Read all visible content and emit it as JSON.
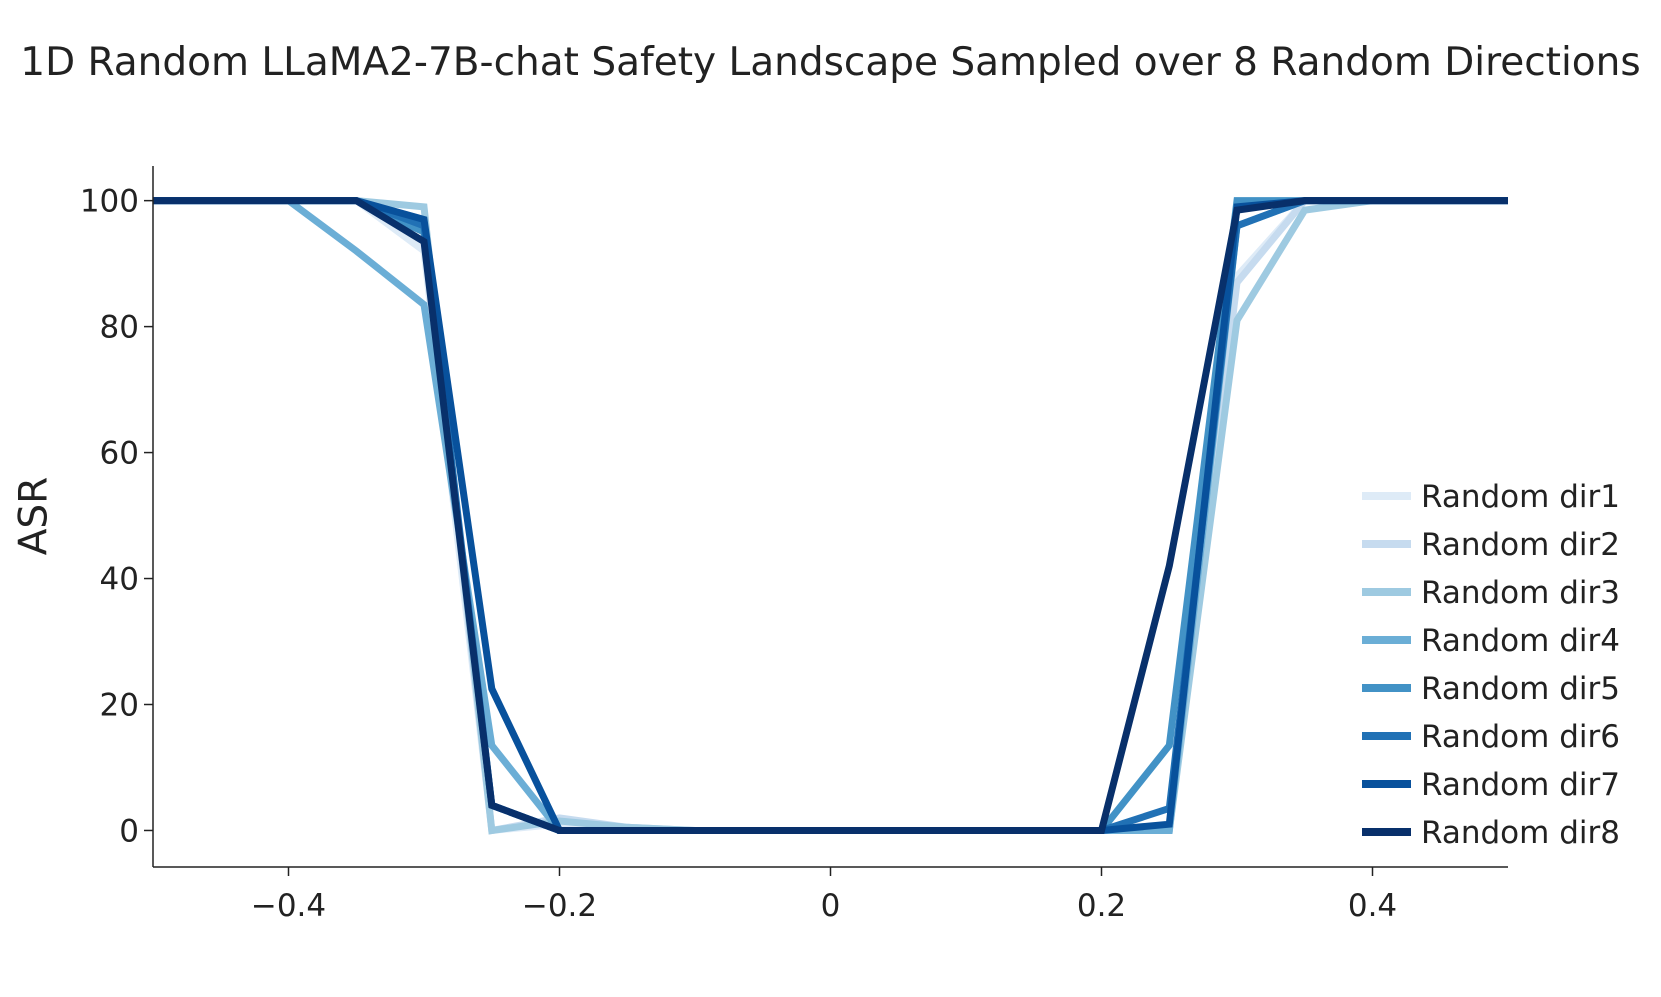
{
  "chart_data": {
    "type": "line",
    "title": "1D Random LLaMA2-7B-chat Safety Landscape Sampled over 8 Random Directions",
    "xlabel": "",
    "ylabel": "ASR",
    "xlim": [
      -0.5,
      0.5
    ],
    "ylim": [
      -5.8,
      105.5
    ],
    "xticks": [
      -0.4,
      -0.2,
      0,
      0.2,
      0.4
    ],
    "xtick_labels": [
      "−0.4",
      "−0.2",
      "0",
      "0.2",
      "0.4"
    ],
    "yticks": [
      0,
      20,
      40,
      60,
      80,
      100
    ],
    "ytick_labels": [
      "0",
      "20",
      "40",
      "60",
      "80",
      "100"
    ],
    "grid": false,
    "legend_position": "lower-right",
    "x": [
      -0.5,
      -0.45,
      -0.4,
      -0.35,
      -0.3,
      -0.25,
      -0.2,
      -0.15,
      -0.1,
      -0.05,
      0,
      0.05,
      0.1,
      0.15,
      0.2,
      0.25,
      0.3,
      0.35,
      0.4,
      0.45,
      0.5
    ],
    "series": [
      {
        "name": "Random dir1",
        "color": "#deebf7",
        "values": [
          100,
          100,
          100,
          100,
          92,
          0,
          1,
          0,
          0,
          0,
          0,
          0,
          0,
          0,
          0,
          0,
          88,
          100,
          100,
          100,
          100
        ]
      },
      {
        "name": "Random dir2",
        "color": "#c6dbef",
        "values": [
          100,
          100,
          100,
          100,
          97,
          0,
          2,
          0.5,
          0,
          0,
          0,
          0,
          0,
          0,
          0,
          0,
          87,
          100,
          100,
          100,
          100
        ]
      },
      {
        "name": "Random dir3",
        "color": "#9ecae1",
        "values": [
          100,
          100,
          100,
          100,
          99,
          0,
          1.5,
          0.5,
          0,
          0,
          0,
          0,
          0,
          0,
          0,
          0,
          81,
          98.5,
          100,
          100,
          100
        ]
      },
      {
        "name": "Random dir4",
        "color": "#6baed6",
        "values": [
          100,
          100,
          100,
          92,
          83.5,
          13.5,
          0,
          0,
          0,
          0,
          0,
          0,
          0,
          0,
          0,
          0,
          96,
          100,
          100,
          100,
          100
        ]
      },
      {
        "name": "Random dir5",
        "color": "#4292c6",
        "values": [
          100,
          100,
          100,
          100,
          95,
          4,
          0,
          0,
          0,
          0,
          0,
          0,
          0,
          0,
          0,
          13.5,
          100,
          100,
          100,
          100,
          100
        ]
      },
      {
        "name": "Random dir6",
        "color": "#2171b5",
        "values": [
          100,
          100,
          100,
          100,
          96,
          4,
          0,
          0,
          0,
          0,
          0,
          0,
          0,
          0,
          0,
          3.5,
          96,
          100,
          100,
          100,
          100
        ]
      },
      {
        "name": "Random dir7",
        "color": "#08519c",
        "values": [
          100,
          100,
          100,
          100,
          97,
          22.5,
          0,
          0,
          0,
          0,
          0,
          0,
          0,
          0,
          0,
          1,
          99,
          100,
          100,
          100,
          100
        ]
      },
      {
        "name": "Random dir8",
        "color": "#08306b",
        "values": [
          100,
          100,
          100,
          100,
          93.5,
          4,
          0,
          0,
          0,
          0,
          0,
          0,
          0,
          0,
          0,
          42,
          98.5,
          100,
          100,
          100,
          100
        ]
      }
    ]
  }
}
